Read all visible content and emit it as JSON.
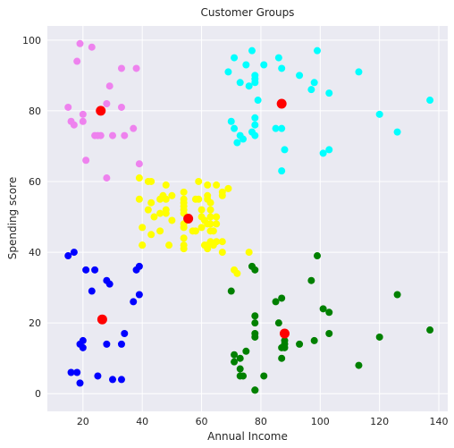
{
  "chart_data": {
    "type": "scatter",
    "title": "Customer Groups",
    "xlabel": "Annual Income",
    "ylabel": "Spending score",
    "xlim": [
      8,
      143
    ],
    "ylim": [
      -5,
      104
    ],
    "xticks": [
      20,
      40,
      60,
      80,
      100,
      120,
      140
    ],
    "yticks": [
      0,
      20,
      40,
      60,
      80,
      100
    ],
    "grid": true,
    "background": "#eaeaf2",
    "series": [
      {
        "color": "#ee82ee",
        "points": [
          [
            15,
            81
          ],
          [
            16,
            77
          ],
          [
            17,
            76
          ],
          [
            18,
            94
          ],
          [
            19,
            99
          ],
          [
            20,
            77
          ],
          [
            20,
            79
          ],
          [
            21,
            66
          ],
          [
            23,
            98
          ],
          [
            24,
            73
          ],
          [
            25,
            73
          ],
          [
            26,
            73
          ],
          [
            28,
            82
          ],
          [
            28,
            61
          ],
          [
            29,
            87
          ],
          [
            30,
            73
          ],
          [
            33,
            92
          ],
          [
            33,
            81
          ],
          [
            34,
            73
          ],
          [
            37,
            75
          ],
          [
            38,
            92
          ],
          [
            39,
            65
          ],
          [
            26,
            80
          ]
        ]
      },
      {
        "color": "#00ffff",
        "points": [
          [
            69,
            91
          ],
          [
            70,
            77
          ],
          [
            71,
            95
          ],
          [
            71,
            75
          ],
          [
            72,
            71
          ],
          [
            73,
            88
          ],
          [
            73,
            73
          ],
          [
            74,
            72
          ],
          [
            75,
            93
          ],
          [
            76,
            87
          ],
          [
            77,
            97
          ],
          [
            77,
            74
          ],
          [
            78,
            90
          ],
          [
            78,
            88
          ],
          [
            78,
            89
          ],
          [
            78,
            78
          ],
          [
            78,
            73
          ],
          [
            78,
            76
          ],
          [
            79,
            83
          ],
          [
            81,
            93
          ],
          [
            85,
            75
          ],
          [
            86,
            95
          ],
          [
            87,
            75
          ],
          [
            87,
            92
          ],
          [
            87,
            63
          ],
          [
            88,
            69
          ],
          [
            93,
            90
          ],
          [
            97,
            86
          ],
          [
            98,
            88
          ],
          [
            99,
            97
          ],
          [
            101,
            68
          ],
          [
            103,
            85
          ],
          [
            103,
            69
          ],
          [
            113,
            91
          ],
          [
            120,
            79
          ],
          [
            126,
            74
          ],
          [
            137,
            83
          ]
        ]
      },
      {
        "color": "#ffff00",
        "points": [
          [
            39,
            61
          ],
          [
            39,
            55
          ],
          [
            40,
            47
          ],
          [
            40,
            42
          ],
          [
            40,
            42
          ],
          [
            42,
            52
          ],
          [
            42,
            60
          ],
          [
            43,
            54
          ],
          [
            43,
            60
          ],
          [
            43,
            45
          ],
          [
            44,
            50
          ],
          [
            46,
            51
          ],
          [
            46,
            55
          ],
          [
            46,
            46
          ],
          [
            47,
            56
          ],
          [
            48,
            52
          ],
          [
            48,
            59
          ],
          [
            48,
            51
          ],
          [
            48,
            55
          ],
          [
            49,
            42
          ],
          [
            50,
            49
          ],
          [
            50,
            56
          ],
          [
            54,
            47
          ],
          [
            54,
            54
          ],
          [
            54,
            53
          ],
          [
            54,
            48
          ],
          [
            54,
            52
          ],
          [
            54,
            42
          ],
          [
            54,
            51
          ],
          [
            54,
            55
          ],
          [
            54,
            41
          ],
          [
            54,
            44
          ],
          [
            54,
            57
          ],
          [
            57,
            46
          ],
          [
            58,
            55
          ],
          [
            58,
            46
          ],
          [
            59,
            55
          ],
          [
            59,
            60
          ],
          [
            60,
            52
          ],
          [
            60,
            47
          ],
          [
            60,
            50
          ],
          [
            61,
            42
          ],
          [
            61,
            49
          ],
          [
            62,
            41
          ],
          [
            62,
            48
          ],
          [
            62,
            59
          ],
          [
            62,
            55
          ],
          [
            62,
            56
          ],
          [
            62,
            42
          ],
          [
            63,
            50
          ],
          [
            63,
            46
          ],
          [
            63,
            43
          ],
          [
            63,
            48
          ],
          [
            63,
            52
          ],
          [
            63,
            54
          ],
          [
            64,
            42
          ],
          [
            64,
            46
          ],
          [
            65,
            48
          ],
          [
            65,
            50
          ],
          [
            65,
            43
          ],
          [
            65,
            59
          ],
          [
            67,
            43
          ],
          [
            67,
            57
          ],
          [
            67,
            56
          ],
          [
            67,
            40
          ],
          [
            69,
            58
          ],
          [
            71,
            35
          ],
          [
            72,
            34
          ],
          [
            76,
            40
          ]
        ]
      },
      {
        "color": "#0000ff",
        "points": [
          [
            15,
            39
          ],
          [
            16,
            6
          ],
          [
            17,
            40
          ],
          [
            18,
            6
          ],
          [
            19,
            3
          ],
          [
            19,
            14
          ],
          [
            20,
            15
          ],
          [
            20,
            13
          ],
          [
            21,
            35
          ],
          [
            23,
            29
          ],
          [
            24,
            35
          ],
          [
            25,
            5
          ],
          [
            28,
            14
          ],
          [
            28,
            32
          ],
          [
            29,
            31
          ],
          [
            30,
            4
          ],
          [
            33,
            4
          ],
          [
            33,
            14
          ],
          [
            34,
            17
          ],
          [
            37,
            26
          ],
          [
            38,
            35
          ],
          [
            39,
            36
          ],
          [
            39,
            28
          ]
        ]
      },
      {
        "color": "#008000",
        "points": [
          [
            70,
            29
          ],
          [
            71,
            11
          ],
          [
            71,
            9
          ],
          [
            73,
            5
          ],
          [
            73,
            7
          ],
          [
            73,
            10
          ],
          [
            74,
            5
          ],
          [
            75,
            12
          ],
          [
            77,
            36
          ],
          [
            78,
            22
          ],
          [
            78,
            17
          ],
          [
            78,
            20
          ],
          [
            78,
            16
          ],
          [
            78,
            1
          ],
          [
            78,
            1
          ],
          [
            78,
            35
          ],
          [
            81,
            5
          ],
          [
            85,
            26
          ],
          [
            86,
            20
          ],
          [
            87,
            27
          ],
          [
            87,
            13
          ],
          [
            87,
            10
          ],
          [
            88,
            13
          ],
          [
            88,
            15
          ],
          [
            88,
            14
          ],
          [
            93,
            14
          ],
          [
            97,
            32
          ],
          [
            98,
            15
          ],
          [
            99,
            39
          ],
          [
            101,
            24
          ],
          [
            103,
            17
          ],
          [
            103,
            23
          ],
          [
            113,
            8
          ],
          [
            120,
            16
          ],
          [
            126,
            28
          ],
          [
            137,
            18
          ]
        ]
      },
      {
        "color": "#ff0000",
        "marker": "large",
        "points": [
          [
            26,
            80
          ],
          [
            87,
            82
          ],
          [
            55.5,
            49.5
          ],
          [
            26.5,
            21
          ],
          [
            88,
            17
          ]
        ]
      }
    ]
  }
}
